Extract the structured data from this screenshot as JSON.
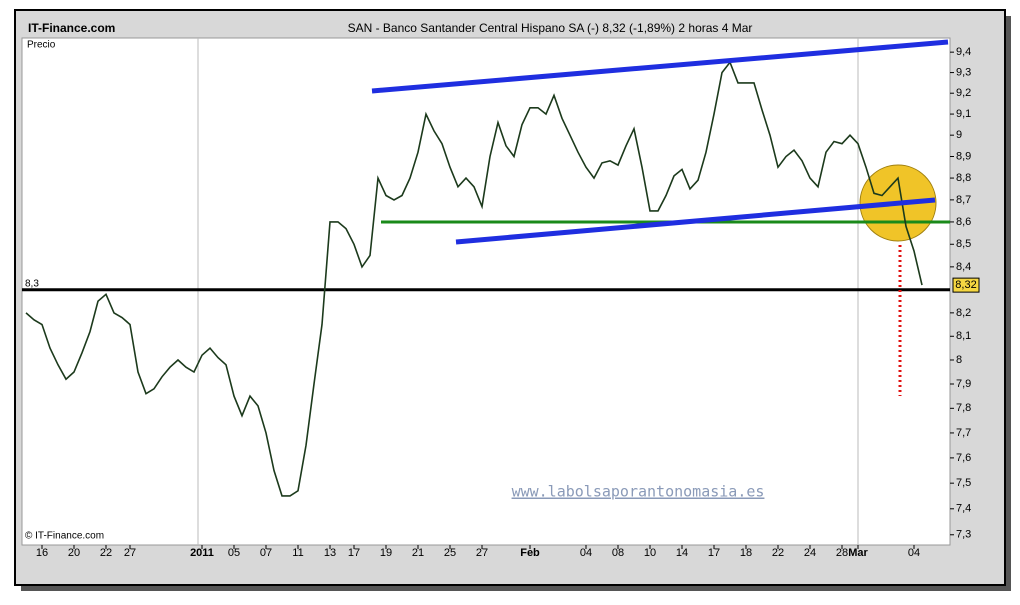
{
  "chart_data": {
    "type": "line",
    "site": "IT-Finance.com",
    "title": "SAN - Banco Santander Central Hispano SA (-)   8,32 (-1,89%)   2 horas  4 Mar",
    "y_label": "Precio",
    "copyright": "© IT-Finance.com",
    "watermark": "www.labolsaporantonomasia.es",
    "log_scale": true,
    "ylim": [
      7.28,
      9.47
    ],
    "yticks": [
      {
        "value": 7.3,
        "label": "7,3"
      },
      {
        "value": 7.4,
        "label": "7,4"
      },
      {
        "value": 7.5,
        "label": "7,5"
      },
      {
        "value": 7.6,
        "label": "7,6"
      },
      {
        "value": 7.7,
        "label": "7,7"
      },
      {
        "value": 7.8,
        "label": "7,8"
      },
      {
        "value": 7.9,
        "label": "7,9"
      },
      8,
      {
        "value": 8.1,
        "label": "8,1"
      },
      {
        "value": 8.2,
        "label": "8,2"
      },
      {
        "value": 8.4,
        "label": "8,4"
      },
      {
        "value": 8.5,
        "label": "8,5"
      },
      {
        "value": 8.6,
        "label": "8,6"
      },
      {
        "value": 8.7,
        "label": "8,7"
      },
      {
        "value": 8.8,
        "label": "8,8"
      },
      {
        "value": 8.9,
        "label": "8,9"
      },
      9,
      {
        "value": 9.1,
        "label": "9,1"
      },
      {
        "value": 9.2,
        "label": "9,2"
      },
      {
        "value": 9.3,
        "label": "9,3"
      },
      {
        "value": 9.4,
        "label": "9,4"
      }
    ],
    "reference_line": {
      "value": 8.3,
      "label": "8,3"
    },
    "support_line": 8.6,
    "last_price": {
      "value": 8.32,
      "label": "8,32"
    },
    "categories": [
      null,
      null,
      "16",
      null,
      null,
      null,
      "20",
      null,
      null,
      null,
      "22",
      null,
      null,
      "27",
      null,
      null,
      null,
      null,
      null,
      null,
      null,
      null,
      "2011",
      null,
      null,
      null,
      "05",
      null,
      null,
      null,
      "07",
      null,
      null,
      null,
      "11",
      null,
      null,
      null,
      "13",
      null,
      null,
      "17",
      null,
      null,
      null,
      "19",
      null,
      null,
      null,
      "21",
      null,
      null,
      null,
      "25",
      null,
      null,
      null,
      "27",
      null,
      null,
      null,
      null,
      null,
      "Feb",
      null,
      null,
      null,
      null,
      null,
      null,
      "04",
      null,
      null,
      null,
      "08",
      null,
      null,
      null,
      "10",
      null,
      null,
      null,
      "14",
      null,
      null,
      null,
      "17",
      null,
      null,
      null,
      "18",
      null,
      null,
      null,
      "22",
      null,
      null,
      null,
      "24",
      null,
      null,
      null,
      "28",
      null,
      "Mar",
      null,
      null,
      null,
      null,
      null,
      null,
      "04",
      null,
      null,
      null,
      null
    ],
    "series": [
      {
        "name": "SAN",
        "color": "#1c3a1c",
        "values": [
          8.2,
          8.17,
          8.15,
          8.05,
          7.98,
          7.92,
          7.95,
          8.03,
          8.12,
          8.25,
          8.28,
          8.2,
          8.18,
          8.15,
          7.95,
          7.86,
          7.88,
          7.93,
          7.97,
          8.0,
          7.97,
          7.95,
          8.02,
          8.05,
          8.01,
          7.98,
          7.85,
          7.77,
          7.85,
          7.81,
          7.7,
          7.55,
          7.45,
          7.45,
          7.47,
          7.65,
          7.9,
          8.15,
          8.6,
          8.6,
          8.57,
          8.5,
          8.4,
          8.45,
          8.8,
          8.72,
          8.7,
          8.72,
          8.8,
          8.92,
          9.1,
          9.02,
          8.96,
          8.85,
          8.76,
          8.8,
          8.76,
          8.67,
          8.9,
          9.06,
          8.95,
          8.9,
          9.05,
          9.13,
          9.13,
          9.1,
          9.19,
          9.08,
          9.0,
          8.92,
          8.85,
          8.8,
          8.87,
          8.88,
          8.86,
          8.95,
          9.03,
          8.85,
          8.65,
          8.65,
          8.72,
          8.81,
          8.84,
          8.75,
          8.79,
          8.92,
          9.1,
          9.3,
          9.35,
          9.25,
          9.25,
          9.25,
          9.12,
          9.0,
          8.85,
          8.9,
          8.93,
          8.88,
          8.8,
          8.76,
          8.92,
          8.97,
          8.96,
          9.0,
          8.96,
          8.85,
          8.73,
          8.72,
          8.76,
          8.8,
          8.58,
          8.47,
          8.32,
          null,
          null,
          null
        ]
      }
    ]
  }
}
